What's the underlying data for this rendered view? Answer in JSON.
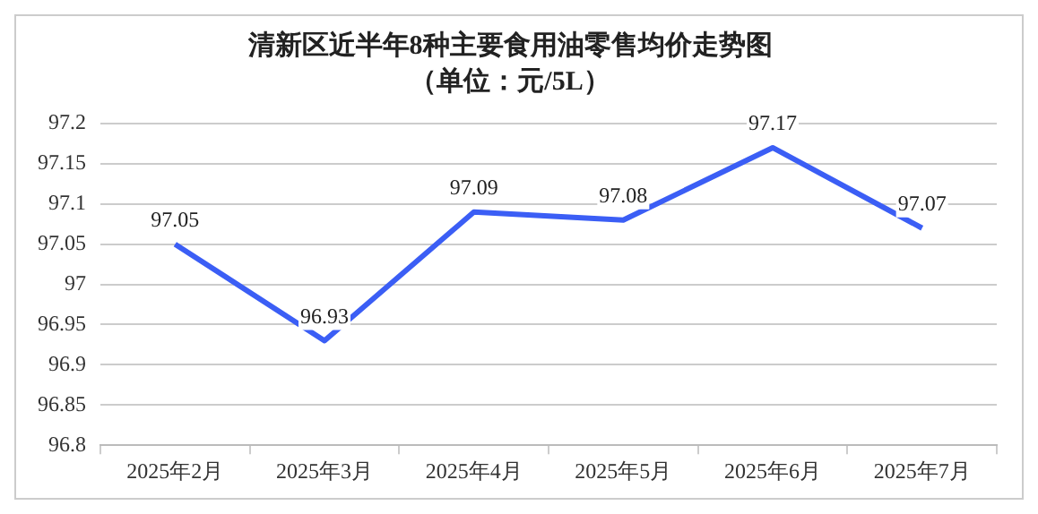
{
  "chart_data": {
    "type": "line",
    "title": "清新区近半年8种主要食用油零售均价走势图",
    "subtitle": "（单位：元/5L）",
    "categories": [
      "2025年2月",
      "2025年3月",
      "2025年4月",
      "2025年5月",
      "2025年6月",
      "2025年7月"
    ],
    "series": [
      {
        "color": "#3b5ef5",
        "values": [
          97.05,
          96.93,
          97.09,
          97.08,
          97.17,
          97.07
        ]
      }
    ],
    "ylim": [
      96.8,
      97.2
    ],
    "yticks": [
      96.8,
      96.85,
      96.9,
      96.95,
      97,
      97.05,
      97.1,
      97.15,
      97.2
    ],
    "grid": "y",
    "data_labels": true,
    "marker": "none",
    "line_style": "solid",
    "legend": false
  }
}
